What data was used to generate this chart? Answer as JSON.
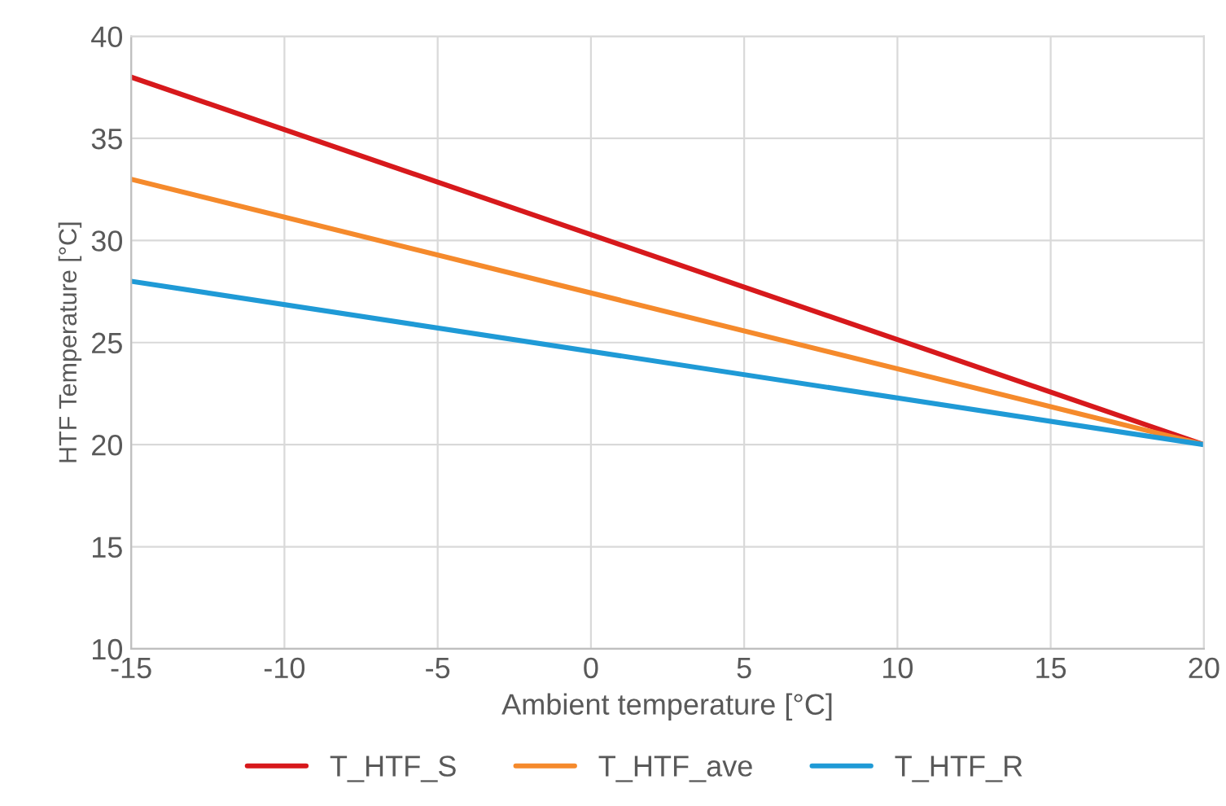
{
  "chart_data": {
    "type": "line",
    "xlabel": "Ambient temperature [°C]",
    "ylabel": "HTF Temperature [°C]",
    "x": [
      -15,
      20
    ],
    "series": [
      {
        "name": "T_HTF_S",
        "color": "#d7191c",
        "values": [
          38,
          20
        ]
      },
      {
        "name": "T_HTF_ave",
        "color": "#f58a2c",
        "values": [
          33,
          20
        ]
      },
      {
        "name": "T_HTF_R",
        "color": "#1f9ad6",
        "values": [
          28,
          20
        ]
      }
    ],
    "xlim": [
      -15,
      20
    ],
    "xticks": [
      -15,
      -10,
      -5,
      0,
      5,
      10,
      15,
      20
    ],
    "ylim": [
      10,
      40
    ],
    "yticks": [
      10,
      15,
      20,
      25,
      30,
      35,
      40
    ],
    "grid": true,
    "legend": "bottom",
    "marker": "none",
    "line_style": "solid"
  }
}
